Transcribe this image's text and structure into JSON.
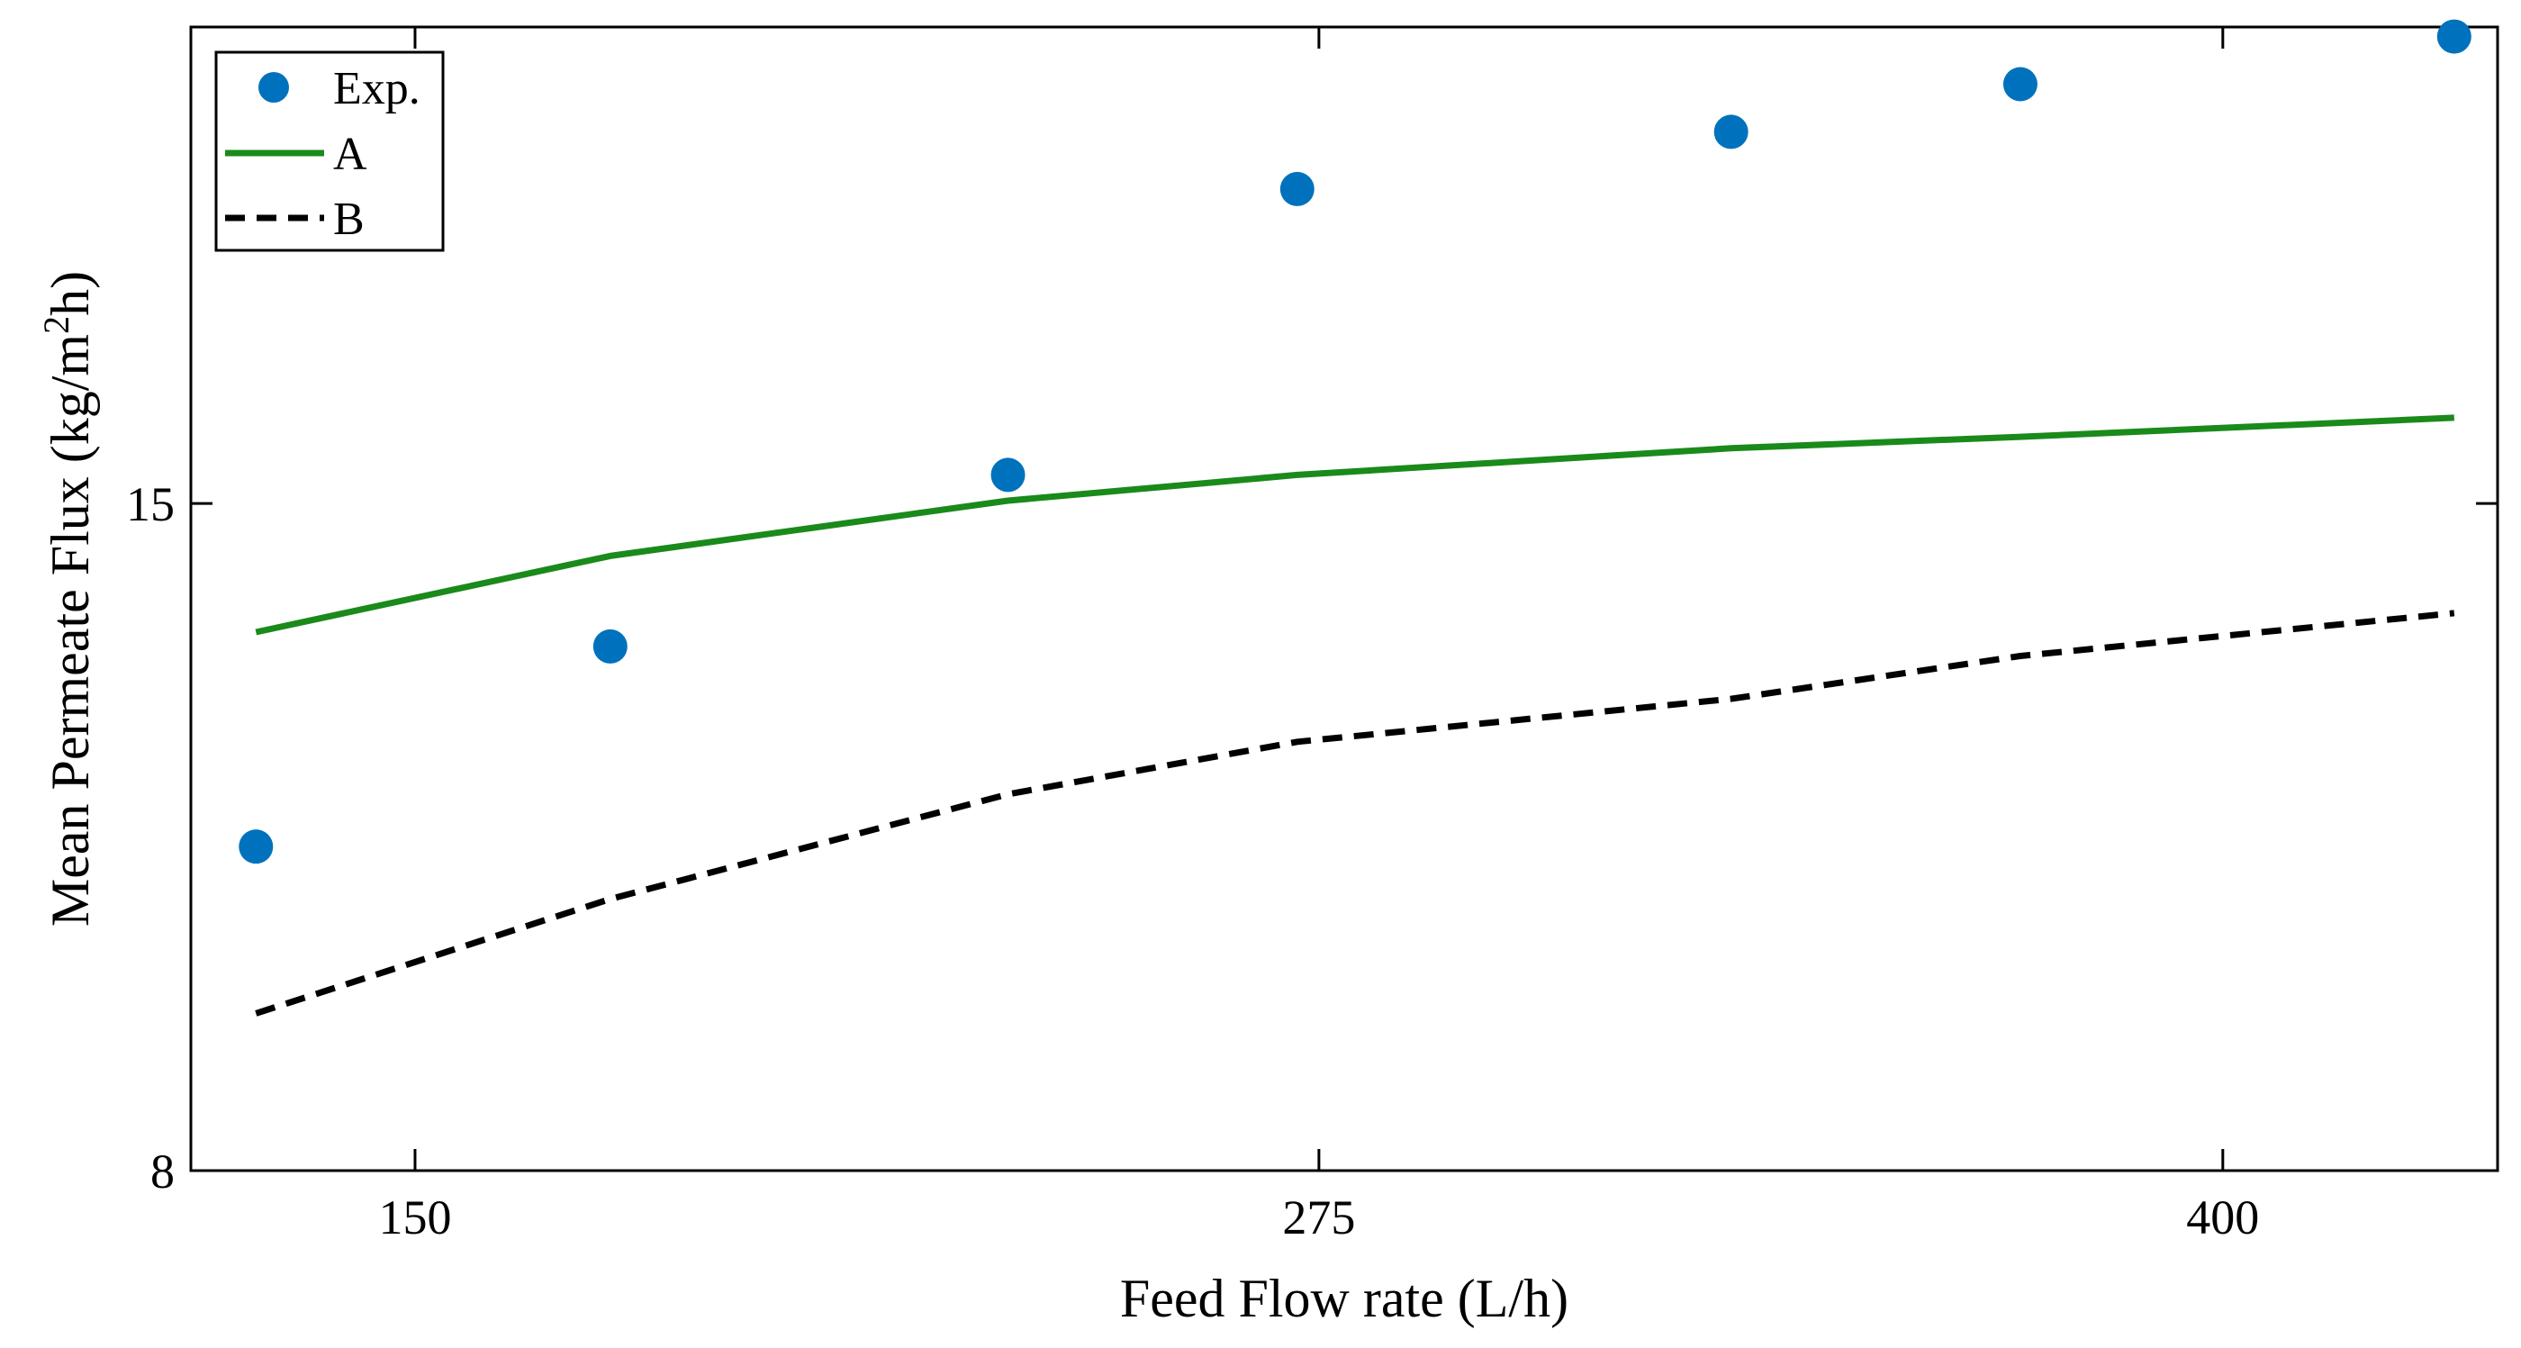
{
  "chart_data": {
    "type": "line",
    "title": "",
    "xlabel": "Feed Flow rate (L/h)",
    "ylabel_main": "Mean Permeate Flux (kg/m",
    "ylabel_sup": "2",
    "ylabel_tail": "h)",
    "xlim": [
      119,
      438
    ],
    "ylim": [
      8,
      20
    ],
    "x_ticks": [
      150,
      275,
      400
    ],
    "x_tick_labels": [
      "150",
      "275",
      "400"
    ],
    "y_ticks": [
      8,
      15
    ],
    "y_tick_labels": [
      "8",
      "15"
    ],
    "grid": false,
    "legend_position": "top-left",
    "series": [
      {
        "name": "Exp.",
        "style": "markers",
        "color": "#0072BD",
        "x": [
          128,
          177,
          232,
          272,
          332,
          372,
          432
        ],
        "y": [
          11.4,
          13.5,
          15.3,
          18.3,
          18.9,
          19.4,
          19.9
        ]
      },
      {
        "name": "A",
        "style": "solid",
        "color": "#1A8A1A",
        "x": [
          128,
          177,
          232,
          272,
          332,
          372,
          432
        ],
        "y": [
          13.65,
          14.45,
          15.03,
          15.3,
          15.58,
          15.7,
          15.9
        ]
      },
      {
        "name": "B",
        "style": "dashed",
        "color": "#000000",
        "x": [
          128,
          177,
          232,
          272,
          332,
          372,
          432
        ],
        "y": [
          9.65,
          10.85,
          11.95,
          12.5,
          12.95,
          13.4,
          13.85
        ]
      }
    ]
  }
}
